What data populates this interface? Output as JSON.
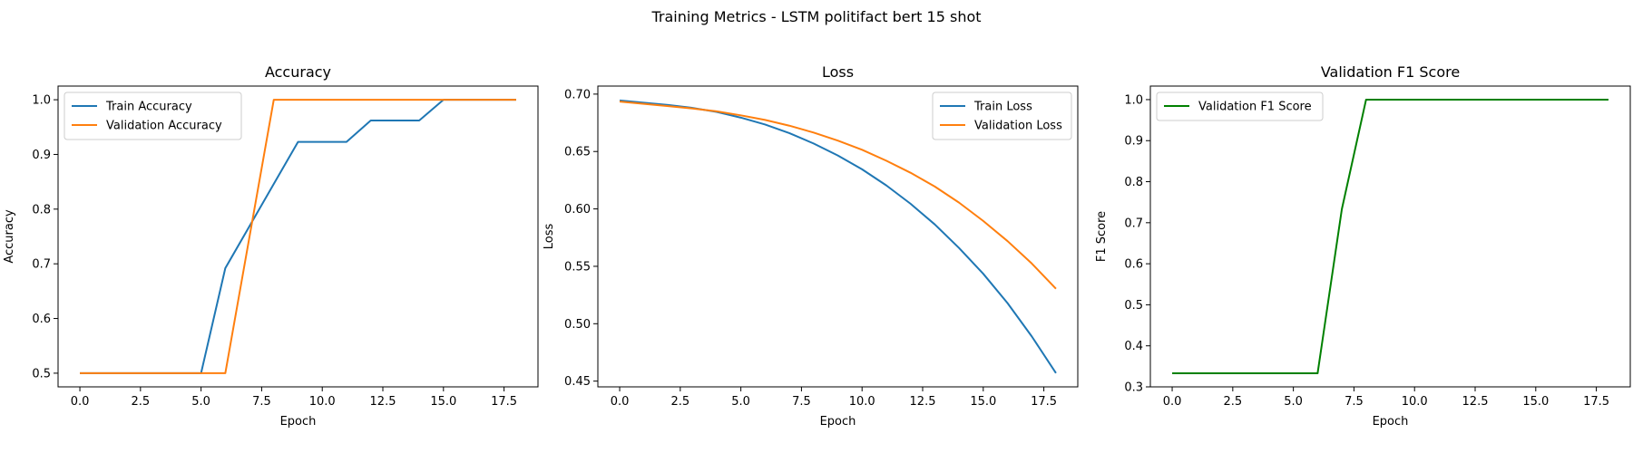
{
  "figure": {
    "suptitle": "Training Metrics - LSTM politifact bert 15 shot"
  },
  "chart_data": [
    {
      "type": "line",
      "title": "Accuracy",
      "xlabel": "Epoch",
      "ylabel": "Accuracy",
      "xlim": [
        -0.9,
        18.9
      ],
      "ylim": [
        0.475,
        1.025
      ],
      "xticks": [
        0.0,
        2.5,
        5.0,
        7.5,
        10.0,
        12.5,
        15.0,
        17.5
      ],
      "xtick_labels": [
        "0.0",
        "2.5",
        "5.0",
        "7.5",
        "10.0",
        "12.5",
        "15.0",
        "17.5"
      ],
      "yticks": [
        0.5,
        0.6,
        0.7,
        0.8,
        0.9,
        1.0
      ],
      "ytick_labels": [
        "0.5",
        "0.6",
        "0.7",
        "0.8",
        "0.9",
        "1.0"
      ],
      "grid": false,
      "legend_position": "upper-left",
      "x": [
        0,
        1,
        2,
        3,
        4,
        5,
        6,
        7,
        8,
        9,
        10,
        11,
        12,
        13,
        14,
        15,
        16,
        17,
        18
      ],
      "series": [
        {
          "name": "Train Accuracy",
          "color": "#1f77b4",
          "values": [
            0.5,
            0.5,
            0.5,
            0.5,
            0.5,
            0.5,
            0.692,
            0.769,
            0.846,
            0.923,
            0.923,
            0.923,
            0.962,
            0.962,
            0.962,
            1.0,
            1.0,
            1.0,
            1.0
          ]
        },
        {
          "name": "Validation Accuracy",
          "color": "#ff7f0e",
          "values": [
            0.5,
            0.5,
            0.5,
            0.5,
            0.5,
            0.5,
            0.5,
            0.75,
            1.0,
            1.0,
            1.0,
            1.0,
            1.0,
            1.0,
            1.0,
            1.0,
            1.0,
            1.0,
            1.0
          ]
        }
      ]
    },
    {
      "type": "line",
      "title": "Loss",
      "xlabel": "Epoch",
      "ylabel": "Loss",
      "xlim": [
        -0.9,
        18.9
      ],
      "ylim": [
        0.445,
        0.707
      ],
      "xticks": [
        0.0,
        2.5,
        5.0,
        7.5,
        10.0,
        12.5,
        15.0,
        17.5
      ],
      "xtick_labels": [
        "0.0",
        "2.5",
        "5.0",
        "7.5",
        "10.0",
        "12.5",
        "15.0",
        "17.5"
      ],
      "yticks": [
        0.45,
        0.5,
        0.55,
        0.6,
        0.65,
        0.7
      ],
      "ytick_labels": [
        "0.45",
        "0.50",
        "0.55",
        "0.60",
        "0.65",
        "0.70"
      ],
      "grid": false,
      "legend_position": "upper-right",
      "x": [
        0,
        1,
        2,
        3,
        4,
        5,
        6,
        7,
        8,
        9,
        10,
        11,
        12,
        13,
        14,
        15,
        16,
        17,
        18
      ],
      "series": [
        {
          "name": "Train Loss",
          "color": "#1f77b4",
          "values": [
            0.6945,
            0.6925,
            0.6905,
            0.688,
            0.6845,
            0.6795,
            0.6735,
            0.666,
            0.657,
            0.6465,
            0.6345,
            0.6205,
            0.6045,
            0.5865,
            0.566,
            0.5435,
            0.518,
            0.489,
            0.457
          ]
        },
        {
          "name": "Validation Loss",
          "color": "#ff7f0e",
          "values": [
            0.6935,
            0.6915,
            0.6895,
            0.6875,
            0.685,
            0.6815,
            0.6775,
            0.6725,
            0.6665,
            0.6595,
            0.6515,
            0.642,
            0.6315,
            0.6195,
            0.6055,
            0.5895,
            0.572,
            0.5525,
            0.5305
          ]
        }
      ]
    },
    {
      "type": "line",
      "title": "Validation F1 Score",
      "xlabel": "Epoch",
      "ylabel": "F1 Score",
      "xlim": [
        -0.9,
        18.9
      ],
      "ylim": [
        0.3,
        1.033
      ],
      "xticks": [
        0.0,
        2.5,
        5.0,
        7.5,
        10.0,
        12.5,
        15.0,
        17.5
      ],
      "xtick_labels": [
        "0.0",
        "2.5",
        "5.0",
        "7.5",
        "10.0",
        "12.5",
        "15.0",
        "17.5"
      ],
      "yticks": [
        0.3,
        0.4,
        0.5,
        0.6,
        0.7,
        0.8,
        0.9,
        1.0
      ],
      "ytick_labels": [
        "0.3",
        "0.4",
        "0.5",
        "0.6",
        "0.7",
        "0.8",
        "0.9",
        "1.0"
      ],
      "grid": false,
      "legend_position": "upper-left",
      "x": [
        0,
        1,
        2,
        3,
        4,
        5,
        6,
        7,
        8,
        9,
        10,
        11,
        12,
        13,
        14,
        15,
        16,
        17,
        18
      ],
      "series": [
        {
          "name": "Validation F1 Score",
          "color": "#008000",
          "values": [
            0.333,
            0.333,
            0.333,
            0.333,
            0.333,
            0.333,
            0.333,
            0.733,
            1.0,
            1.0,
            1.0,
            1.0,
            1.0,
            1.0,
            1.0,
            1.0,
            1.0,
            1.0,
            1.0
          ]
        }
      ]
    }
  ]
}
